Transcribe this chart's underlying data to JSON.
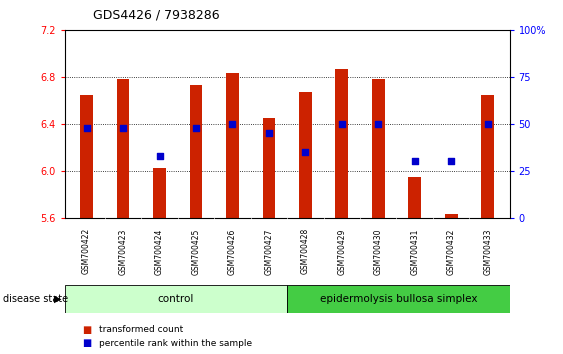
{
  "title": "GDS4426 / 7938286",
  "samples": [
    "GSM700422",
    "GSM700423",
    "GSM700424",
    "GSM700425",
    "GSM700426",
    "GSM700427",
    "GSM700428",
    "GSM700429",
    "GSM700430",
    "GSM700431",
    "GSM700432",
    "GSM700433"
  ],
  "bar_values": [
    6.65,
    6.78,
    6.02,
    6.73,
    6.83,
    6.45,
    6.67,
    6.87,
    6.78,
    5.95,
    5.63,
    6.65
  ],
  "dot_values": [
    48,
    48,
    33,
    48,
    50,
    45,
    35,
    50,
    50,
    30,
    30,
    50
  ],
  "ymin": 5.6,
  "ymax": 7.2,
  "y2min": 0,
  "y2max": 100,
  "yticks": [
    5.6,
    6.0,
    6.4,
    6.8,
    7.2
  ],
  "y2ticks": [
    0,
    25,
    50,
    75,
    100
  ],
  "bar_color": "#cc2200",
  "dot_color": "#0000cc",
  "control_bg": "#ccffcc",
  "ebs_bg": "#44cc44",
  "label_bg": "#cccccc",
  "control_label": "control",
  "ebs_label": "epidermolysis bullosa simplex",
  "disease_label": "disease state",
  "legend_bar": "transformed count",
  "legend_dot": "percentile rank within the sample",
  "n_control": 6,
  "n_ebs": 6,
  "bar_width": 0.35
}
